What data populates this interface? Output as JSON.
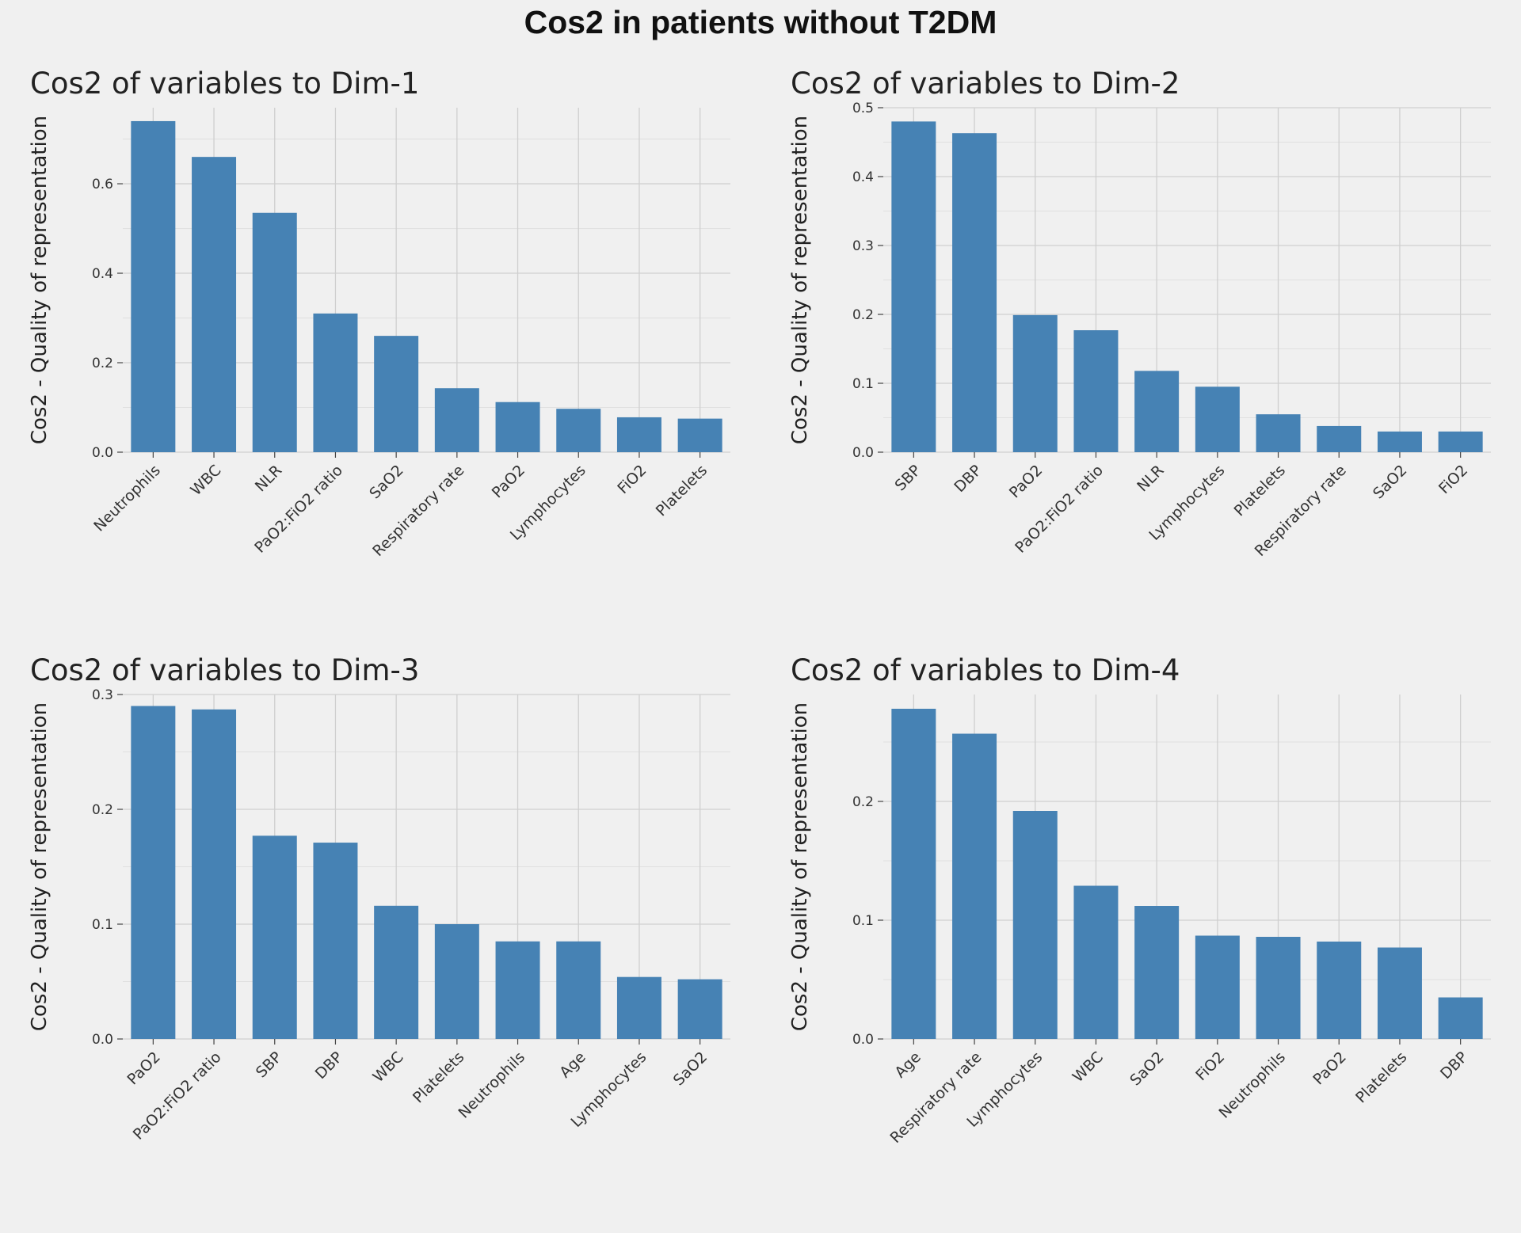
{
  "title": "Cos2 in patients without T2DM",
  "colors": {
    "bar": "#4682b4",
    "background": "#f0f0f0",
    "grid": "#cfcfcf"
  },
  "chart_data": [
    {
      "type": "bar",
      "title": "Cos2 of variables to Dim-1",
      "ylabel": "Cos2 - Quality of representation",
      "xlabel": "",
      "categories": [
        "Neutrophils",
        "WBC",
        "NLR",
        "PaO2:FiO2 ratio",
        "SaO2",
        "Respiratory rate",
        "PaO2",
        "Lymphocytes",
        "FiO2",
        "Platelets"
      ],
      "values": [
        0.74,
        0.66,
        0.535,
        0.31,
        0.26,
        0.143,
        0.112,
        0.097,
        0.078,
        0.075
      ],
      "yticks": [
        0.0,
        0.2,
        0.4,
        0.6
      ],
      "ytick_labels": [
        "0.0",
        "0.2",
        "0.4",
        "0.6"
      ],
      "ylim": [
        0,
        0.77
      ],
      "grid": true
    },
    {
      "type": "bar",
      "title": "Cos2 of variables to Dim-2",
      "ylabel": "Cos2 - Quality of representation",
      "xlabel": "",
      "categories": [
        "SBP",
        "DBP",
        "PaO2",
        "PaO2:FiO2 ratio",
        "NLR",
        "Lymphocytes",
        "Platelets",
        "Respiratory rate",
        "SaO2",
        "FiO2"
      ],
      "values": [
        0.48,
        0.463,
        0.199,
        0.177,
        0.118,
        0.095,
        0.055,
        0.038,
        0.03,
        0.03
      ],
      "yticks": [
        0.0,
        0.1,
        0.2,
        0.3,
        0.4,
        0.5
      ],
      "ytick_labels": [
        "0.0",
        "0.1",
        "0.2",
        "0.3",
        "0.4",
        "0.5"
      ],
      "ylim": [
        0,
        0.5
      ],
      "grid": true
    },
    {
      "type": "bar",
      "title": "Cos2 of variables to Dim-3",
      "ylabel": "Cos2 - Quality of representation",
      "xlabel": "",
      "categories": [
        "PaO2",
        "PaO2:FiO2 ratio",
        "SBP",
        "DBP",
        "WBC",
        "Platelets",
        "Neutrophils",
        "Age",
        "Lymphocytes",
        "SaO2"
      ],
      "values": [
        0.29,
        0.287,
        0.177,
        0.171,
        0.116,
        0.1,
        0.085,
        0.085,
        0.054,
        0.052
      ],
      "yticks": [
        0.0,
        0.1,
        0.2,
        0.3
      ],
      "ytick_labels": [
        "0.0",
        "0.1",
        "0.2",
        "0.3"
      ],
      "ylim": [
        0,
        0.3
      ],
      "grid": true
    },
    {
      "type": "bar",
      "title": "Cos2 of variables to Dim-4",
      "ylabel": "Cos2 - Quality of representation",
      "xlabel": "",
      "categories": [
        "Age",
        "Respiratory rate",
        "Lymphocytes",
        "WBC",
        "SaO2",
        "FiO2",
        "Neutrophils",
        "PaO2",
        "Platelets",
        "DBP"
      ],
      "values": [
        0.278,
        0.257,
        0.192,
        0.129,
        0.112,
        0.087,
        0.086,
        0.082,
        0.077,
        0.035
      ],
      "yticks": [
        0.0,
        0.1,
        0.2
      ],
      "ytick_labels": [
        "0.0",
        "0.1",
        "0.2"
      ],
      "ylim": [
        0,
        0.29
      ],
      "grid": true
    }
  ]
}
